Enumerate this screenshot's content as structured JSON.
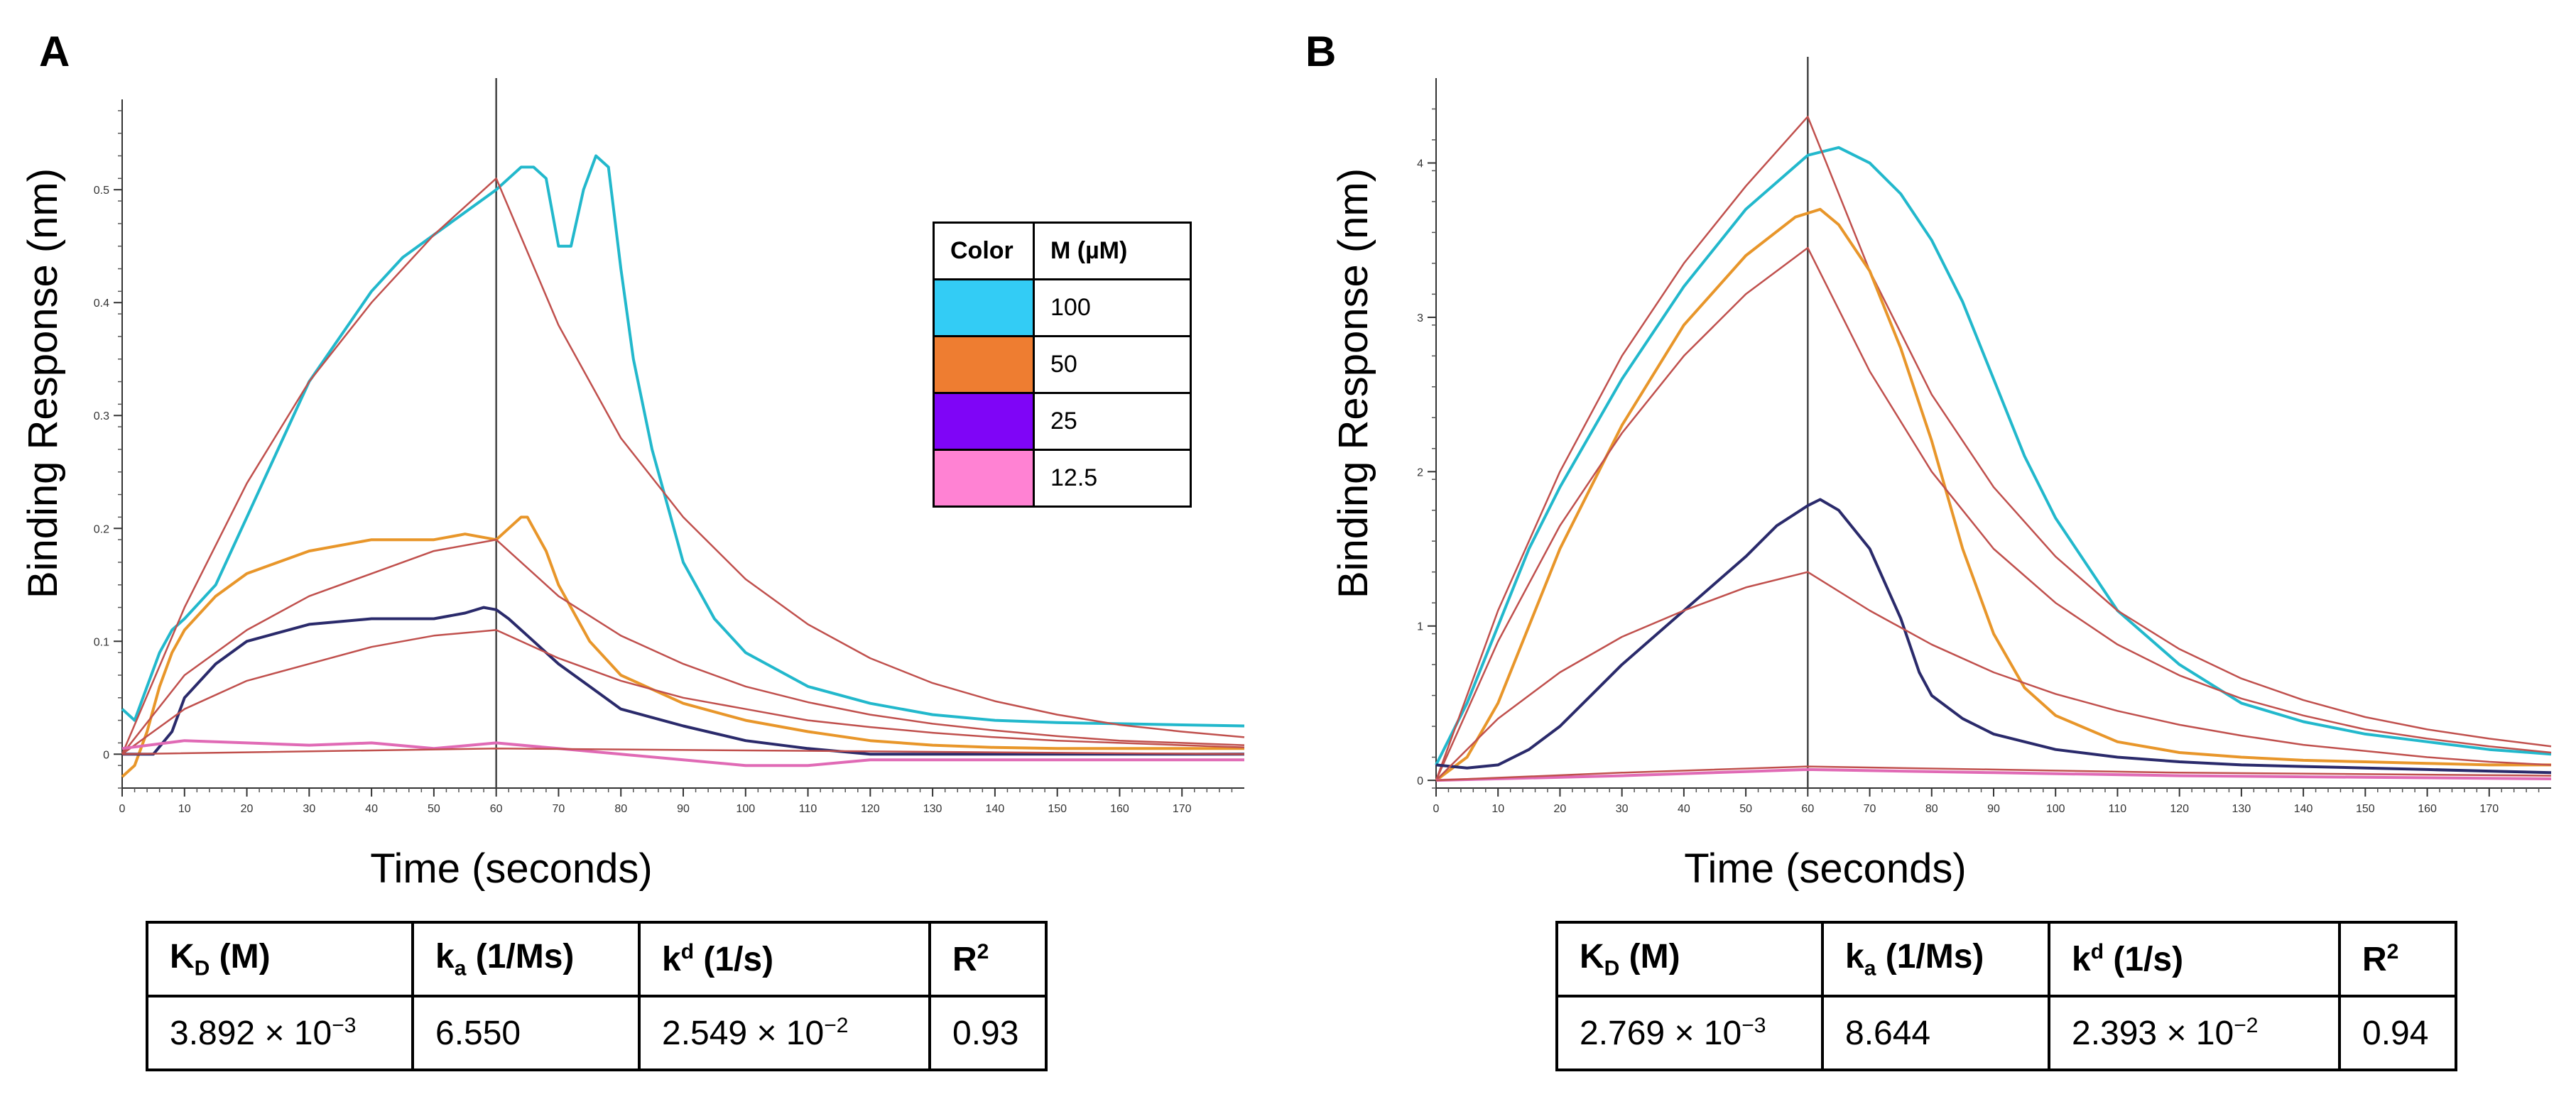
{
  "panels": [
    {
      "letter": "A"
    },
    {
      "letter": "B"
    }
  ],
  "legend": {
    "header_color": "Color",
    "header_conc": "M (µM)",
    "rows": [
      {
        "label": "100",
        "color": "#33ccf5"
      },
      {
        "label": "50",
        "color": "#ee7d31"
      },
      {
        "label": "25",
        "color": "#7f05f7"
      },
      {
        "label": "12.5",
        "color": "#ff82d3"
      }
    ]
  },
  "tables": [
    {
      "kd": "3.892 × 10",
      "kd_exp": "−3",
      "ka": "6.550",
      "kdis": "2.549 × 10",
      "kdis_exp": "−2",
      "r2": "0.93"
    },
    {
      "kd": "2.769 × 10",
      "kd_exp": "−3",
      "ka": "8.644",
      "kdis": "2.393 × 10",
      "kdis_exp": "−2",
      "r2": "0.94"
    }
  ],
  "table_headers": {
    "kd": "K",
    "kd_sub": "D",
    "kd_unit": " (M)",
    "ka": "k",
    "ka_sub": "a",
    "ka_unit": " (1/Ms)",
    "kdis": "k",
    "kdis_sup": "d",
    "kdis_unit": " (1/s)",
    "r2": "R",
    "r2_sup": "2"
  },
  "chart_data": [
    {
      "type": "line",
      "panel": "A",
      "xlabel": "Time (seconds)",
      "ylabel": "Binding Response (nm)",
      "xlim": [
        0,
        180
      ],
      "ylim": [
        -0.03,
        0.58
      ],
      "xticks": [
        0,
        10,
        20,
        30,
        40,
        50,
        60,
        70,
        80,
        90,
        100,
        110,
        120,
        130,
        140,
        150,
        160,
        170
      ],
      "yticks": [
        0,
        0.1,
        0.2,
        0.3,
        0.4,
        0.5
      ],
      "vline_x": 60,
      "series": [
        {
          "name": "100 µM",
          "color": "#22b8cc",
          "x": [
            0,
            2,
            4,
            6,
            8,
            10,
            15,
            20,
            25,
            30,
            35,
            40,
            45,
            50,
            55,
            60,
            62,
            64,
            66,
            68,
            70,
            72,
            74,
            76,
            78,
            80,
            82,
            85,
            90,
            95,
            100,
            110,
            120,
            130,
            140,
            150,
            160,
            170,
            180
          ],
          "y": [
            0.04,
            0.03,
            0.06,
            0.09,
            0.11,
            0.12,
            0.15,
            0.21,
            0.27,
            0.33,
            0.37,
            0.41,
            0.44,
            0.46,
            0.48,
            0.5,
            0.51,
            0.52,
            0.52,
            0.51,
            0.45,
            0.45,
            0.5,
            0.53,
            0.52,
            0.43,
            0.35,
            0.27,
            0.17,
            0.12,
            0.09,
            0.06,
            0.045,
            0.035,
            0.03,
            0.028,
            0.027,
            0.026,
            0.025
          ]
        },
        {
          "name": "100 µM fit",
          "color": "#c0504d",
          "x": [
            0,
            10,
            20,
            30,
            40,
            50,
            60,
            70,
            80,
            90,
            100,
            110,
            120,
            130,
            140,
            150,
            160,
            170,
            180
          ],
          "y": [
            0,
            0.13,
            0.24,
            0.33,
            0.4,
            0.46,
            0.51,
            0.38,
            0.28,
            0.21,
            0.155,
            0.115,
            0.085,
            0.063,
            0.047,
            0.035,
            0.026,
            0.02,
            0.015
          ]
        },
        {
          "name": "50 µM",
          "color": "#e8962a",
          "x": [
            0,
            2,
            4,
            6,
            8,
            10,
            15,
            20,
            30,
            40,
            50,
            55,
            60,
            62,
            64,
            65,
            66,
            68,
            70,
            75,
            80,
            90,
            100,
            110,
            120,
            130,
            140,
            150,
            160,
            170,
            180
          ],
          "y": [
            -0.02,
            -0.01,
            0.02,
            0.06,
            0.09,
            0.11,
            0.14,
            0.16,
            0.18,
            0.19,
            0.19,
            0.195,
            0.19,
            0.2,
            0.21,
            0.21,
            0.2,
            0.18,
            0.15,
            0.1,
            0.07,
            0.045,
            0.03,
            0.02,
            0.012,
            0.008,
            0.006,
            0.005,
            0.005,
            0.005,
            0.005
          ]
        },
        {
          "name": "50 µM fit",
          "color": "#c0504d",
          "x": [
            0,
            10,
            20,
            30,
            40,
            50,
            60,
            70,
            80,
            90,
            100,
            110,
            120,
            130,
            140,
            150,
            160,
            170,
            180
          ],
          "y": [
            0,
            0.07,
            0.11,
            0.14,
            0.16,
            0.18,
            0.19,
            0.14,
            0.105,
            0.08,
            0.06,
            0.046,
            0.035,
            0.027,
            0.021,
            0.016,
            0.012,
            0.01,
            0.008
          ]
        },
        {
          "name": "25 µM",
          "color": "#2a2a6b",
          "x": [
            0,
            5,
            8,
            10,
            15,
            20,
            30,
            40,
            50,
            55,
            58,
            60,
            62,
            65,
            70,
            75,
            80,
            90,
            100,
            110,
            120,
            130,
            140,
            150,
            160,
            170,
            180
          ],
          "y": [
            0,
            0,
            0.02,
            0.05,
            0.08,
            0.1,
            0.115,
            0.12,
            0.12,
            0.125,
            0.13,
            0.128,
            0.12,
            0.105,
            0.08,
            0.06,
            0.04,
            0.025,
            0.012,
            0.005,
            0.0,
            0.0,
            0.0,
            0.0,
            0.0,
            0.0,
            0.0
          ]
        },
        {
          "name": "25 µM fit",
          "color": "#c0504d",
          "x": [
            0,
            10,
            20,
            30,
            40,
            50,
            60,
            70,
            80,
            90,
            100,
            110,
            120,
            130,
            140,
            150,
            160,
            170,
            180
          ],
          "y": [
            0,
            0.04,
            0.065,
            0.08,
            0.095,
            0.105,
            0.11,
            0.085,
            0.065,
            0.05,
            0.04,
            0.03,
            0.024,
            0.019,
            0.015,
            0.012,
            0.01,
            0.008,
            0.006
          ]
        },
        {
          "name": "12.5 µM",
          "color": "#e06ab5",
          "x": [
            0,
            10,
            20,
            30,
            40,
            50,
            60,
            70,
            80,
            90,
            100,
            110,
            120,
            130,
            140,
            150,
            160,
            170,
            180
          ],
          "y": [
            0.005,
            0.012,
            0.01,
            0.008,
            0.01,
            0.005,
            0.01,
            0.005,
            0.0,
            -0.005,
            -0.01,
            -0.01,
            -0.005,
            -0.005,
            -0.005,
            -0.005,
            -0.005,
            -0.005,
            -0.005
          ]
        },
        {
          "name": "12.5 µM fit",
          "color": "#c0504d",
          "x": [
            0,
            60,
            180
          ],
          "y": [
            0,
            0.005,
            0.0
          ]
        }
      ]
    },
    {
      "type": "line",
      "panel": "B",
      "xlabel": "Time (seconds)",
      "ylabel": "Binding Response (nm)",
      "xlim": [
        0,
        180
      ],
      "ylim": [
        -0.05,
        4.55
      ],
      "xticks": [
        0,
        10,
        20,
        30,
        40,
        50,
        60,
        70,
        80,
        90,
        100,
        110,
        120,
        130,
        140,
        150,
        160,
        170
      ],
      "yticks": [
        0,
        1,
        2,
        3,
        4
      ],
      "vline_x": 60,
      "series": [
        {
          "name": "100 µM",
          "color": "#22b8cc",
          "x": [
            0,
            5,
            10,
            15,
            20,
            30,
            40,
            50,
            60,
            65,
            70,
            75,
            80,
            85,
            90,
            95,
            100,
            110,
            120,
            130,
            140,
            150,
            160,
            170,
            180
          ],
          "y": [
            0.1,
            0.5,
            1.0,
            1.5,
            1.9,
            2.6,
            3.2,
            3.7,
            4.05,
            4.1,
            4.0,
            3.8,
            3.5,
            3.1,
            2.6,
            2.1,
            1.7,
            1.1,
            0.75,
            0.5,
            0.38,
            0.3,
            0.25,
            0.2,
            0.17
          ]
        },
        {
          "name": "100 µM fit",
          "color": "#c0504d",
          "x": [
            0,
            10,
            20,
            30,
            40,
            50,
            60,
            70,
            80,
            90,
            100,
            110,
            120,
            130,
            140,
            150,
            160,
            170,
            180
          ],
          "y": [
            0,
            1.1,
            2.0,
            2.75,
            3.35,
            3.85,
            4.3,
            3.3,
            2.5,
            1.9,
            1.45,
            1.1,
            0.85,
            0.66,
            0.52,
            0.41,
            0.33,
            0.27,
            0.22
          ]
        },
        {
          "name": "50 µM",
          "color": "#e8962a",
          "x": [
            0,
            5,
            10,
            15,
            20,
            30,
            40,
            50,
            58,
            62,
            65,
            70,
            75,
            80,
            85,
            90,
            95,
            100,
            110,
            120,
            130,
            140,
            150,
            160,
            170,
            180
          ],
          "y": [
            0,
            0.15,
            0.5,
            1.0,
            1.5,
            2.3,
            2.95,
            3.4,
            3.65,
            3.7,
            3.6,
            3.3,
            2.8,
            2.2,
            1.5,
            0.95,
            0.6,
            0.42,
            0.25,
            0.18,
            0.15,
            0.13,
            0.12,
            0.11,
            0.1,
            0.1
          ]
        },
        {
          "name": "50 µM fit",
          "color": "#c0504d",
          "x": [
            0,
            10,
            20,
            30,
            40,
            50,
            60,
            70,
            80,
            90,
            100,
            110,
            120,
            130,
            140,
            150,
            160,
            170,
            180
          ],
          "y": [
            0,
            0.9,
            1.65,
            2.25,
            2.75,
            3.15,
            3.45,
            2.65,
            2.0,
            1.5,
            1.15,
            0.88,
            0.68,
            0.53,
            0.42,
            0.33,
            0.27,
            0.22,
            0.18
          ]
        },
        {
          "name": "25 µM",
          "color": "#2a2a6b",
          "x": [
            0,
            5,
            10,
            15,
            20,
            25,
            30,
            40,
            50,
            55,
            60,
            62,
            65,
            70,
            75,
            78,
            80,
            85,
            90,
            100,
            110,
            120,
            130,
            140,
            150,
            160,
            170,
            180
          ],
          "y": [
            0.1,
            0.08,
            0.1,
            0.2,
            0.35,
            0.55,
            0.75,
            1.1,
            1.45,
            1.65,
            1.78,
            1.82,
            1.75,
            1.5,
            1.05,
            0.7,
            0.55,
            0.4,
            0.3,
            0.2,
            0.15,
            0.12,
            0.1,
            0.09,
            0.08,
            0.07,
            0.06,
            0.05
          ]
        },
        {
          "name": "25 µM fit",
          "color": "#c0504d",
          "x": [
            0,
            10,
            20,
            30,
            40,
            50,
            60,
            70,
            80,
            90,
            100,
            110,
            120,
            130,
            140,
            150,
            160,
            170,
            180
          ],
          "y": [
            0,
            0.4,
            0.7,
            0.93,
            1.1,
            1.25,
            1.35,
            1.1,
            0.88,
            0.7,
            0.56,
            0.45,
            0.36,
            0.29,
            0.23,
            0.19,
            0.15,
            0.12,
            0.1
          ]
        },
        {
          "name": "12.5 µM",
          "color": "#e06ab5",
          "x": [
            0,
            30,
            60,
            90,
            120,
            150,
            180
          ],
          "y": [
            0.0,
            0.03,
            0.07,
            0.05,
            0.03,
            0.02,
            0.01
          ]
        },
        {
          "name": "12.5 µM fit",
          "color": "#c0504d",
          "x": [
            0,
            30,
            60,
            90,
            120,
            150,
            180
          ],
          "y": [
            0,
            0.05,
            0.09,
            0.07,
            0.05,
            0.04,
            0.03
          ]
        }
      ]
    }
  ]
}
